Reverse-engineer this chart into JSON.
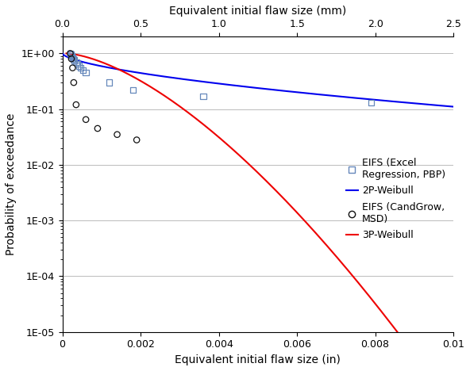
{
  "xlabel_bottom": "Equivalent initial flaw size (in)",
  "xlabel_top": "Equivalent initial flaw size (mm)",
  "ylabel": "Probability of exceedance",
  "xlim_in": [
    0,
    0.01
  ],
  "ylim": [
    1e-05,
    2.0
  ],
  "xticks_bottom": [
    0,
    0.002,
    0.004,
    0.006,
    0.008,
    0.01
  ],
  "xtick_labels_bottom": [
    "0",
    "0.002",
    "0.004",
    "0.006",
    "0.008",
    "0.01"
  ],
  "xticks_top_mm": [
    0.0,
    0.5,
    1.0,
    1.5,
    2.0,
    2.5
  ],
  "xtick_labels_top": [
    "0.0",
    "0.5",
    "1.0",
    "1.5",
    "2.0",
    "2.5"
  ],
  "yticks": [
    1e-05,
    0.0001,
    0.001,
    0.01,
    0.1,
    1.0
  ],
  "ytick_labels": [
    "1E-05",
    "1E-04",
    "1E-03",
    "1E-02",
    "1E-01",
    "1E+00"
  ],
  "eifs_sc_x": [
    0.0002,
    0.00022,
    0.00024,
    0.00026,
    0.00028,
    0.0003,
    0.00035,
    0.00039,
    0.00043,
    0.00047,
    0.00053,
    0.0006,
    0.0012,
    0.0018,
    0.0036,
    0.0079
  ],
  "eifs_sc_y": [
    1.0,
    0.95,
    0.9,
    0.85,
    0.8,
    0.75,
    0.7,
    0.65,
    0.6,
    0.55,
    0.5,
    0.45,
    0.3,
    0.22,
    0.17,
    0.13
  ],
  "eifs_msd_x": [
    0.0002,
    0.00023,
    0.00026,
    0.00029,
    0.00035,
    0.0006,
    0.0009,
    0.0014,
    0.0019
  ],
  "eifs_msd_y": [
    1.0,
    0.8,
    0.55,
    0.3,
    0.12,
    0.065,
    0.045,
    0.035,
    0.028
  ],
  "weibull2p_lambda": 0.0028,
  "weibull2p_k": 0.62,
  "weibull3p_lambda": 0.00175,
  "weibull3p_k": 1.55,
  "weibull3p_theta": 0.0001,
  "blue_color": "#0000EE",
  "red_color": "#EE0000",
  "square_color": "#6688BB",
  "circle_color": "#111111",
  "background": "#FFFFFF",
  "grid_color": "#BBBBBB",
  "legend_sq_label": "EIFS (Excel\nRegression, PBP)",
  "legend_blue_label": "2P-Weibull",
  "legend_circ_label": "EIFS (CandGrow,\nMSD)",
  "legend_red_label": "3P-Weibull",
  "fontsize_axis_label": 10,
  "fontsize_tick": 9,
  "fontsize_legend": 9
}
